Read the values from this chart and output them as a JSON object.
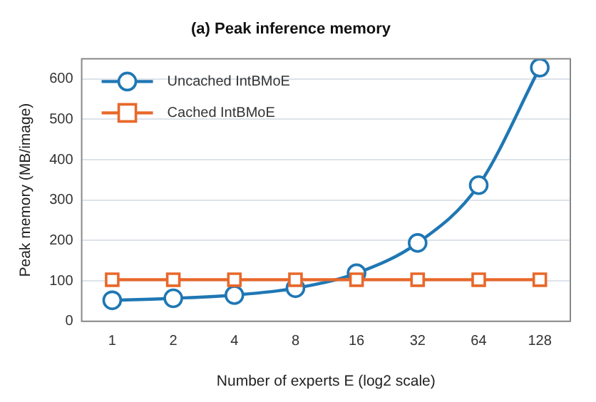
{
  "chart_data": {
    "type": "line",
    "title": "(a) Peak inference memory",
    "xlabel": "Number of experts E (log2 scale)",
    "ylabel": "Peak memory (MB/image)",
    "categories": [
      "1",
      "2",
      "4",
      "8",
      "16",
      "32",
      "64",
      "128"
    ],
    "series": [
      {
        "name": "Uncached IntBMoE",
        "color": "#1f77b4",
        "marker": "circle",
        "values": [
          52,
          57,
          65,
          82,
          119,
          194,
          337,
          628
        ]
      },
      {
        "name": "Cached IntBMoE",
        "color": "#e8682a",
        "marker": "square",
        "values": [
          103,
          103,
          103,
          103,
          103,
          103,
          103,
          103
        ]
      }
    ],
    "ylim": [
      0,
      650
    ],
    "yticks": [
      0,
      100,
      200,
      300,
      400,
      500,
      600
    ],
    "grid": "y",
    "legend": "top left",
    "line_style": "solid"
  }
}
